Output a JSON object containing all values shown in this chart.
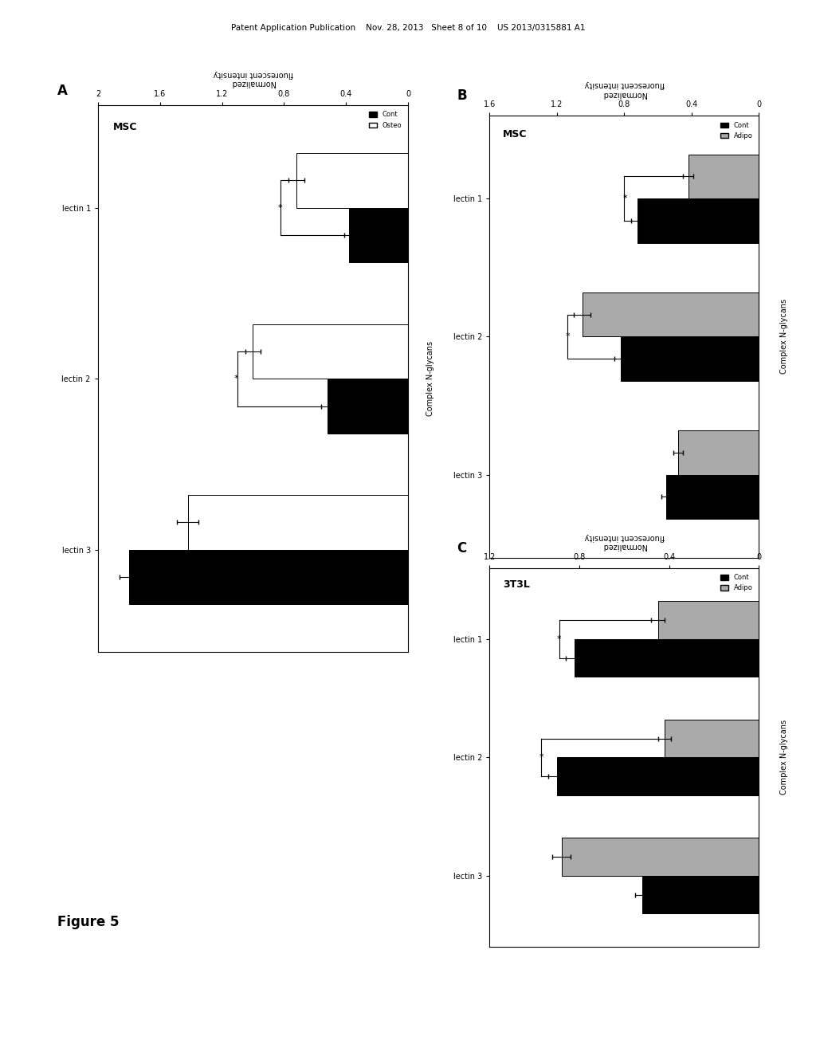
{
  "header_text": "Patent Application Publication    Nov. 28, 2013   Sheet 8 of 10    US 2013/0315881 A1",
  "figure_label": "Figure 5",
  "panel_A": {
    "title": "MSC",
    "subtitle": "Complex N-glycans",
    "legend": [
      "Cont",
      "Osteo"
    ],
    "legend_colors": [
      "#000000",
      "#ffffff"
    ],
    "groups": [
      "lectin 1",
      "lectin 2",
      "lectin 3"
    ],
    "cont_values": [
      0.38,
      0.52,
      1.8
    ],
    "other_values": [
      0.72,
      1.0,
      1.42
    ],
    "cont_err": [
      0.03,
      0.04,
      0.06
    ],
    "other_err": [
      0.05,
      0.05,
      0.07
    ],
    "xlim": [
      0,
      2.0
    ],
    "xticks": [
      0,
      0.4,
      0.8,
      1.2,
      1.6,
      2.0
    ],
    "xtick_labels": [
      "0",
      "0.4",
      "0.8",
      "1.2",
      "1.6",
      "2"
    ],
    "significance": [
      true,
      true,
      false
    ]
  },
  "panel_B": {
    "title": "MSC",
    "subtitle": "Complex N-glycans",
    "legend": [
      "Cont",
      "Adipo"
    ],
    "legend_colors": [
      "#000000",
      "#aaaaaa"
    ],
    "groups": [
      "lectin 1",
      "lectin 2",
      "lectin 3"
    ],
    "cont_values": [
      0.72,
      0.82,
      0.55
    ],
    "other_values": [
      0.42,
      1.05,
      0.48
    ],
    "cont_err": [
      0.04,
      0.04,
      0.03
    ],
    "other_err": [
      0.03,
      0.05,
      0.03
    ],
    "xlim": [
      0,
      1.6
    ],
    "xticks": [
      0,
      0.4,
      0.8,
      1.2,
      1.6
    ],
    "xtick_labels": [
      "0",
      "0.4",
      "0.8",
      "1.2",
      "1.6"
    ],
    "significance": [
      true,
      true,
      false
    ]
  },
  "panel_C": {
    "title": "3T3L",
    "subtitle": "Complex N-glycans",
    "legend": [
      "Cont",
      "Adipo"
    ],
    "legend_colors": [
      "#000000",
      "#aaaaaa"
    ],
    "groups": [
      "lectin 1",
      "lectin 2",
      "lectin 3"
    ],
    "cont_values": [
      0.82,
      0.9,
      0.52
    ],
    "other_values": [
      0.45,
      0.42,
      0.88
    ],
    "cont_err": [
      0.04,
      0.04,
      0.03
    ],
    "other_err": [
      0.03,
      0.03,
      0.04
    ],
    "xlim": [
      0,
      1.2
    ],
    "xticks": [
      0,
      0.4,
      0.8,
      1.2
    ],
    "xtick_labels": [
      "0",
      "0.4",
      "0.8",
      "1.2"
    ],
    "significance": [
      true,
      true,
      false
    ]
  },
  "background_color": "#ffffff",
  "bar_height": 0.32
}
